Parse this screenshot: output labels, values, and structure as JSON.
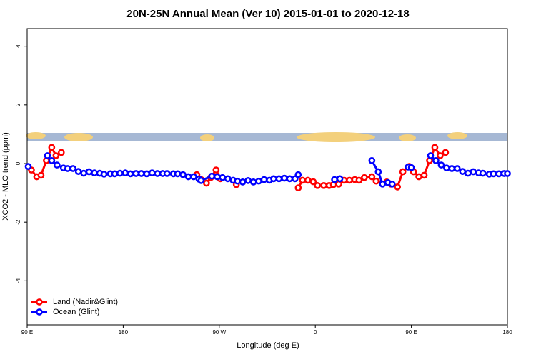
{
  "chart_data": {
    "type": "line",
    "title": "20N-25N Annual Mean (Ver 10)   2015-01-01 to 2020-12-18",
    "xlabel": "Longitude (deg E)",
    "ylabel": "XCO2 - MLO trend (ppm)",
    "xlim": [
      90,
      540
    ],
    "ylim": [
      -5.5,
      4.6
    ],
    "xticks": [
      {
        "value": 90,
        "label": "90 E"
      },
      180,
      {
        "value": 270,
        "label": "90 W"
      },
      {
        "value": 360,
        "label": "0"
      },
      {
        "value": 450,
        "label": "90 E"
      },
      {
        "value": 540,
        "label": "180"
      }
    ],
    "yticks": [
      -4,
      -2,
      0,
      2,
      4
    ],
    "legend": "bottom-left",
    "series": [
      {
        "name": "Land (Nadir&Glint)",
        "color": "#ff0000",
        "x": [
          94,
          99,
          103,
          108,
          113,
          117,
          122,
          null,
          249,
          253,
          258,
          262,
          267,
          271,
          null,
          286,
          null,
          344,
          348,
          353,
          358,
          362,
          368,
          373,
          377,
          382,
          387,
          392,
          397,
          401,
          406,
          413,
          417,
          427,
          431,
          437,
          442,
          448,
          452,
          457,
          462,
          467,
          472,
          477,
          482
        ],
        "values": [
          -0.22,
          -0.45,
          -0.4,
          0.1,
          0.55,
          0.27,
          0.38,
          null,
          -0.38,
          -0.55,
          -0.67,
          -0.48,
          -0.22,
          -0.52,
          null,
          -0.72,
          null,
          -0.83,
          -0.57,
          -0.57,
          -0.62,
          -0.75,
          -0.75,
          -0.75,
          -0.72,
          -0.7,
          -0.57,
          -0.57,
          -0.55,
          -0.57,
          -0.48,
          -0.45,
          -0.6,
          -0.63,
          -0.7,
          -0.8,
          -0.28,
          -0.1,
          -0.28,
          -0.45,
          -0.4,
          0.1,
          0.55,
          0.27,
          0.38
        ]
      },
      {
        "name": "Ocean (Glint)",
        "color": "#0000ff",
        "x": [
          91,
          null,
          109,
          113,
          118,
          124,
          128,
          133,
          138,
          143,
          148,
          153,
          158,
          162,
          168,
          172,
          177,
          182,
          187,
          192,
          197,
          202,
          207,
          212,
          217,
          221,
          227,
          231,
          236,
          241,
          246,
          251,
          253,
          263,
          268,
          273,
          278,
          283,
          287,
          292,
          297,
          302,
          307,
          312,
          317,
          321,
          326,
          331,
          336,
          341,
          344,
          null,
          378,
          383,
          null,
          413,
          419,
          423,
          428,
          432,
          null,
          447,
          450,
          null,
          468,
          473,
          478,
          483,
          488,
          493,
          498,
          503,
          508,
          513,
          517,
          523,
          527,
          532,
          537,
          540
        ],
        "values": [
          -0.1,
          null,
          0.27,
          0.1,
          -0.05,
          -0.15,
          -0.17,
          -0.17,
          -0.27,
          -0.33,
          -0.28,
          -0.32,
          -0.33,
          -0.36,
          -0.35,
          -0.35,
          -0.33,
          -0.32,
          -0.35,
          -0.34,
          -0.34,
          -0.35,
          -0.32,
          -0.34,
          -0.34,
          -0.34,
          -0.35,
          -0.35,
          -0.38,
          -0.45,
          -0.45,
          -0.53,
          -0.58,
          -0.43,
          -0.45,
          -0.48,
          -0.52,
          -0.57,
          -0.6,
          -0.63,
          -0.58,
          -0.63,
          -0.6,
          -0.55,
          -0.57,
          -0.52,
          -0.52,
          -0.5,
          -0.52,
          -0.52,
          -0.38,
          null,
          -0.55,
          -0.52,
          null,
          0.1,
          -0.28,
          -0.7,
          -0.65,
          -0.7,
          null,
          -0.12,
          -0.14,
          null,
          0.27,
          0.1,
          -0.05,
          -0.15,
          -0.17,
          -0.17,
          -0.27,
          -0.33,
          -0.28,
          -0.32,
          -0.33,
          -0.36,
          -0.35,
          -0.35,
          -0.34,
          -0.34
        ]
      }
    ]
  }
}
